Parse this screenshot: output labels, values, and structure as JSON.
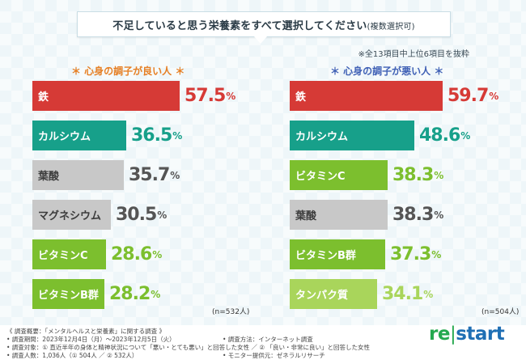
{
  "title": {
    "main": "不足していると思う栄養素をすべて選択してください",
    "sub": "(複数選択可)"
  },
  "note": "※全13項目中上位6項目を抜粋",
  "groups": {
    "good": "＊ 心身の調子が良い人 ＊",
    "bad": "＊ 心身の調子が悪い人 ＊"
  },
  "n_labels": {
    "good": "(n=532人)",
    "bad": "(n=504人)"
  },
  "colors": {
    "red": "#d63a36",
    "teal": "#17a08a",
    "gray": "#c8c8c8",
    "green": "#7cbf2e",
    "lightgreen": "#a9d55b"
  },
  "chart_data": [
    {
      "type": "bar",
      "title": "＊ 心身の調子が良い人 ＊",
      "unit": "%",
      "xlim": [
        0,
        100
      ],
      "categories": [
        "鉄",
        "カルシウム",
        "葉酸",
        "マグネシウム",
        "ビタミンC",
        "ビタミンB群"
      ],
      "values": [
        57.5,
        36.5,
        35.7,
        30.5,
        28.6,
        28.2
      ],
      "bar_colors": [
        "#d63a36",
        "#17a08a",
        "#c8c8c8",
        "#c8c8c8",
        "#7cbf2e",
        "#7cbf2e"
      ],
      "value_colors": [
        "#d63a36",
        "#17a08a",
        "#555555",
        "#555555",
        "#7cbf2e",
        "#7cbf2e"
      ],
      "dark_label": [
        false,
        false,
        true,
        true,
        false,
        false
      ]
    },
    {
      "type": "bar",
      "title": "＊ 心身の調子が悪い人 ＊",
      "unit": "%",
      "xlim": [
        0,
        100
      ],
      "categories": [
        "鉄",
        "カルシウム",
        "ビタミンC",
        "葉酸",
        "ビタミンB群",
        "タンパク質"
      ],
      "values": [
        59.7,
        48.6,
        38.3,
        38.3,
        37.3,
        34.1
      ],
      "bar_colors": [
        "#d63a36",
        "#17a08a",
        "#7cbf2e",
        "#c8c8c8",
        "#7cbf2e",
        "#a9d55b"
      ],
      "value_colors": [
        "#d63a36",
        "#17a08a",
        "#7cbf2e",
        "#555555",
        "#7cbf2e",
        "#a9d55b"
      ],
      "dark_label": [
        false,
        false,
        false,
        true,
        false,
        false
      ]
    }
  ],
  "footer": {
    "summary": "《 調査概要：「メンタルヘルスと栄養素」に関する調査 》",
    "period": "• 調査期間：2023年12月4日（月）〜2023年12月5日（火）",
    "target": "• 調査対象：① 直近半年の身体と精神状況について「悪い・とても悪い」と回答した女性 ／ ② 「良い・非常に良い」と回答した女性",
    "count": "• 調査人数：1,036人（① 504人 ／ ② 532人）",
    "method": "• 調査方法：インターネット調査",
    "provider": "• モニター提供元：ゼネラルリサーチ"
  },
  "logo": {
    "re": "re",
    "sep": "|",
    "start": "start"
  }
}
